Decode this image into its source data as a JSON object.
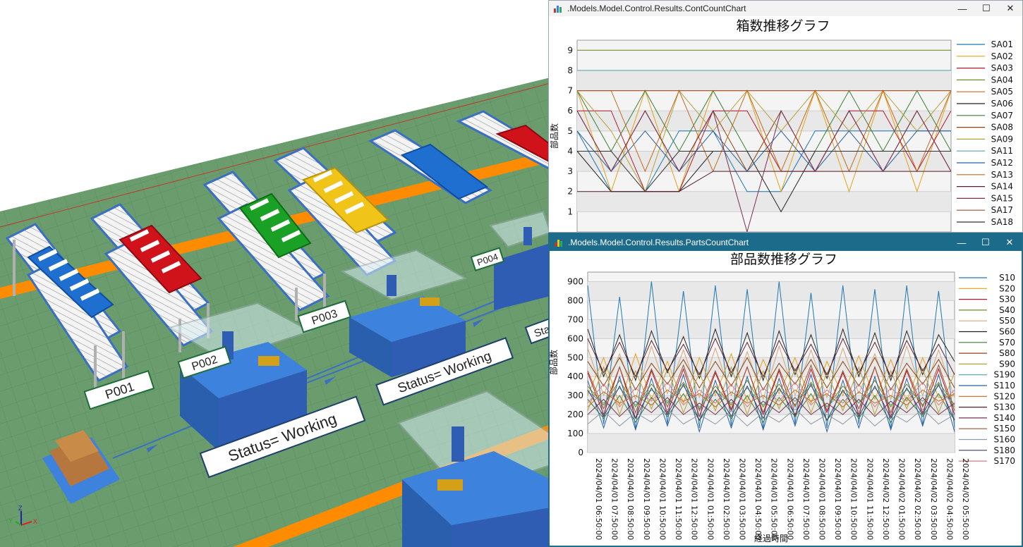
{
  "scene": {
    "labels": {
      "p001": "P001",
      "p002": "P002",
      "p003": "P003",
      "p004": "P004",
      "status1": "Status= Working",
      "status2": "Status= Working",
      "status3": "Sta"
    },
    "axis_gizmo": {
      "x": "X",
      "y": "Y",
      "z": "Z"
    }
  },
  "colors": {
    "floor": "#6a9c6e",
    "floor_grid": "#5c8d60",
    "orange_path": "#ff8c00",
    "machine_blue": "#2e5db3",
    "window_title_active": "#1d6b8b"
  },
  "win1": {
    "title": ".Models.Model.Control.Results.ContCountChart",
    "icon": "chart-icon",
    "controls": {
      "minimize": "—",
      "maximize": "☐",
      "close": "✕"
    }
  },
  "win2": {
    "title": ".Models.Model.Control.Results.PartsCountChart",
    "icon": "chart-icon",
    "controls": {
      "minimize": "—",
      "maximize": "☐",
      "close": "✕"
    }
  },
  "chart_data": [
    {
      "type": "line",
      "title": "箱数推移グラフ",
      "ylabel": "部品数",
      "xlabel": "",
      "ylim": [
        0,
        9.5
      ],
      "yticks": [
        1,
        2,
        3,
        4,
        5,
        6,
        7,
        8,
        9
      ],
      "grid": true,
      "legend_position": "right",
      "series": [
        {
          "name": "SA01",
          "color": "#1f77b4",
          "values": [
            5,
            2,
            2,
            5,
            5,
            2,
            2,
            5,
            5,
            5,
            5,
            5
          ]
        },
        {
          "name": "SA02",
          "color": "#e6a117",
          "values": [
            7,
            2,
            7,
            2,
            7,
            7,
            2,
            7,
            2,
            7,
            2,
            7
          ]
        },
        {
          "name": "SA03",
          "color": "#b2182b",
          "values": [
            6,
            6,
            2,
            2,
            6,
            6,
            3,
            3,
            6,
            6,
            3,
            6
          ]
        },
        {
          "name": "SA04",
          "color": "#6b8e23",
          "values": [
            9,
            9,
            9,
            9,
            9,
            9,
            9,
            9,
            9,
            9,
            9,
            9
          ]
        },
        {
          "name": "SA05",
          "color": "#d2691e",
          "values": [
            7,
            7,
            7,
            7,
            7,
            7,
            7,
            7,
            7,
            7,
            7,
            7
          ]
        },
        {
          "name": "SA06",
          "color": "#222222",
          "values": [
            4,
            2,
            2,
            2,
            4,
            4,
            1,
            4,
            4,
            4,
            4,
            4
          ]
        },
        {
          "name": "SA07",
          "color": "#3a7d3a",
          "values": [
            7,
            4,
            7,
            4,
            7,
            4,
            4,
            4,
            7,
            4,
            7,
            4
          ]
        },
        {
          "name": "SA08",
          "color": "#8b4513",
          "values": [
            6,
            3,
            6,
            3,
            6,
            3,
            6,
            3,
            6,
            3,
            6,
            3
          ]
        },
        {
          "name": "SA09",
          "color": "#b8a038",
          "values": [
            7,
            5,
            2,
            7,
            5,
            7,
            5,
            7,
            5,
            7,
            5,
            7
          ]
        },
        {
          "name": "SA11",
          "color": "#4ca6a6",
          "values": [
            8,
            8,
            8,
            8,
            8,
            8,
            8,
            8,
            8,
            8,
            8,
            8
          ]
        },
        {
          "name": "SA12",
          "color": "#2c5f9e",
          "values": [
            5,
            3,
            5,
            3,
            5,
            3,
            5,
            3,
            5,
            3,
            5,
            5
          ]
        },
        {
          "name": "SA13",
          "color": "#c46a1c",
          "values": [
            7,
            7,
            3,
            7,
            3,
            7,
            3,
            7,
            3,
            7,
            3,
            7
          ]
        },
        {
          "name": "SA14",
          "color": "#5a1f2e",
          "values": [
            2,
            2,
            2,
            2,
            3,
            3,
            3,
            3,
            3,
            3,
            3,
            3
          ]
        },
        {
          "name": "SA15",
          "color": "#7a2f52",
          "values": [
            6,
            3,
            6,
            3,
            6,
            0,
            6,
            3,
            6,
            3,
            6,
            3
          ]
        },
        {
          "name": "SA17",
          "color": "#a0522d",
          "values": [
            7,
            7,
            7,
            7,
            7,
            7,
            7,
            7,
            7,
            7,
            7,
            7
          ]
        },
        {
          "name": "SA18",
          "color": "#333333",
          "values": [
            4,
            4,
            2,
            4,
            4,
            4,
            4,
            4,
            4,
            4,
            4,
            4
          ]
        }
      ]
    },
    {
      "type": "line",
      "title": "部品数推移グラフ",
      "ylabel": "部品数",
      "xlabel": "経過時間",
      "ylim": [
        0,
        950
      ],
      "yticks": [
        0,
        100,
        200,
        300,
        400,
        500,
        600,
        700,
        800,
        900
      ],
      "grid": true,
      "legend_position": "right",
      "x": [
        "2024/04/01 06:50:00",
        "2024/04/01 07:50:00",
        "2024/04/01 08:50:00",
        "2024/04/01 09:50:00",
        "2024/04/01 10:50:00",
        "2024/04/01 11:50:00",
        "2024/04/01 12:50:00",
        "2024/04/01 01:50:00",
        "2024/04/01 02:50:00",
        "2024/04/01 03:50:00",
        "2024/04/01 04:50:00",
        "2024/04/01 05:50:00",
        "2024/04/01 06:50:00",
        "2024/04/01 07:50:00",
        "2024/04/01 08:50:00",
        "2024/04/01 09:50:00",
        "2024/04/01 10:50:00",
        "2024/04/01 11:50:00",
        "2024/04/02 12:50:00",
        "2024/04/02 01:50:00",
        "2024/04/02 02:50:00",
        "2024/04/02 03:50:00",
        "2024/04/02 04:50:00",
        "2024/04/02 05:50:00"
      ],
      "series": [
        {
          "name": "S10",
          "color": "#1f77b4",
          "values": [
            880,
            150,
            820,
            120,
            900,
            150,
            850,
            130,
            880,
            140,
            860,
            120,
            900,
            150,
            840,
            130,
            880,
            150,
            860,
            120,
            880,
            140,
            850,
            130
          ]
        },
        {
          "name": "S20",
          "color": "#e6a117",
          "values": [
            300,
            500,
            250,
            520,
            280,
            480,
            260,
            500,
            300,
            520,
            270,
            490,
            310,
            500,
            260,
            480,
            300,
            510,
            280,
            490,
            270,
            500,
            290,
            300
          ]
        },
        {
          "name": "S30",
          "color": "#b2182b",
          "values": [
            420,
            200,
            450,
            180,
            430,
            210,
            440,
            190,
            420,
            220,
            450,
            200,
            430,
            190,
            440,
            210,
            420,
            200,
            450,
            190,
            430,
            210,
            440,
            200
          ]
        },
        {
          "name": "S40",
          "color": "#6b8e23",
          "values": [
            350,
            250,
            380,
            240,
            360,
            260,
            370,
            230,
            350,
            250,
            380,
            240,
            360,
            250,
            370,
            240,
            350,
            260,
            380,
            240,
            360,
            250,
            370,
            250
          ]
        },
        {
          "name": "S50",
          "color": "#d2a679",
          "values": [
            550,
            300,
            520,
            280,
            560,
            310,
            540,
            290,
            550,
            300,
            530,
            280,
            560,
            300,
            540,
            290,
            550,
            310,
            520,
            280,
            560,
            300,
            540,
            290
          ]
        },
        {
          "name": "S60",
          "color": "#222222",
          "values": [
            650,
            400,
            620,
            380,
            640,
            420,
            610,
            390,
            650,
            400,
            630,
            380,
            640,
            410,
            620,
            390,
            650,
            400,
            630,
            380,
            640,
            410,
            620,
            480
          ]
        },
        {
          "name": "S70",
          "color": "#3a7d3a",
          "values": [
            280,
            180,
            300,
            160,
            290,
            190,
            310,
            170,
            280,
            180,
            300,
            160,
            290,
            190,
            310,
            170,
            280,
            180,
            300,
            160,
            290,
            190,
            310,
            170
          ]
        },
        {
          "name": "S80",
          "color": "#8b4513",
          "values": [
            480,
            350,
            500,
            330,
            470,
            360,
            490,
            340,
            480,
            350,
            500,
            330,
            470,
            360,
            490,
            340,
            480,
            350,
            500,
            330,
            470,
            360,
            490,
            340
          ]
        },
        {
          "name": "S90",
          "color": "#b8a038",
          "values": [
            220,
            450,
            200,
            430,
            230,
            440,
            210,
            420,
            220,
            450,
            200,
            430,
            230,
            440,
            210,
            420,
            220,
            450,
            200,
            430,
            230,
            440,
            210,
            420
          ]
        },
        {
          "name": "S190",
          "color": "#4ca6a6",
          "values": [
            320,
            260,
            340,
            250,
            330,
            270,
            350,
            240,
            320,
            260,
            340,
            250,
            330,
            270,
            350,
            240,
            320,
            260,
            340,
            250,
            330,
            270,
            350,
            240
          ]
        },
        {
          "name": "S110",
          "color": "#2c5f9e",
          "values": [
            380,
            130,
            400,
            120,
            390,
            140,
            410,
            110,
            380,
            130,
            400,
            120,
            390,
            140,
            410,
            110,
            380,
            130,
            400,
            120,
            390,
            140,
            410,
            110
          ]
        },
        {
          "name": "S120",
          "color": "#c46a1c",
          "values": [
            240,
            320,
            260,
            300,
            250,
            330,
            270,
            310,
            240,
            320,
            260,
            300,
            250,
            330,
            270,
            310,
            240,
            320,
            260,
            300,
            250,
            330,
            270,
            310
          ]
        },
        {
          "name": "S130",
          "color": "#5a1f2e",
          "values": [
            600,
            420,
            580,
            400,
            590,
            430,
            570,
            410,
            600,
            420,
            580,
            400,
            590,
            430,
            570,
            410,
            600,
            420,
            580,
            400,
            590,
            430,
            570,
            410
          ]
        },
        {
          "name": "S140",
          "color": "#7a2f52",
          "values": [
            200,
            280,
            190,
            270,
            210,
            290,
            200,
            260,
            200,
            280,
            190,
            270,
            210,
            290,
            200,
            260,
            200,
            280,
            190,
            270,
            210,
            290,
            200,
            260
          ]
        },
        {
          "name": "S150",
          "color": "#a0522d",
          "values": [
            430,
            230,
            450,
            210,
            440,
            240,
            460,
            220,
            430,
            230,
            450,
            210,
            440,
            240,
            460,
            220,
            430,
            230,
            450,
            210,
            440,
            240,
            460,
            220
          ]
        },
        {
          "name": "S160",
          "color": "#8c9aa6",
          "values": [
            150,
            220,
            140,
            210,
            160,
            230,
            150,
            200,
            150,
            220,
            140,
            210,
            160,
            230,
            150,
            200,
            150,
            220,
            140,
            210,
            160,
            230,
            150,
            200
          ]
        },
        {
          "name": "S180",
          "color": "#3d3d5c",
          "values": [
            330,
            190,
            350,
            180,
            340,
            200,
            360,
            170,
            330,
            190,
            350,
            180,
            340,
            200,
            360,
            170,
            330,
            190,
            350,
            180,
            340,
            200,
            360,
            170
          ]
        },
        {
          "name": "S170",
          "color": "#d97a8a",
          "values": [
            260,
            360,
            240,
            340,
            270,
            370,
            250,
            330,
            260,
            360,
            240,
            340,
            270,
            370,
            250,
            330,
            260,
            360,
            240,
            340,
            270,
            370,
            250,
            330
          ]
        }
      ]
    }
  ]
}
